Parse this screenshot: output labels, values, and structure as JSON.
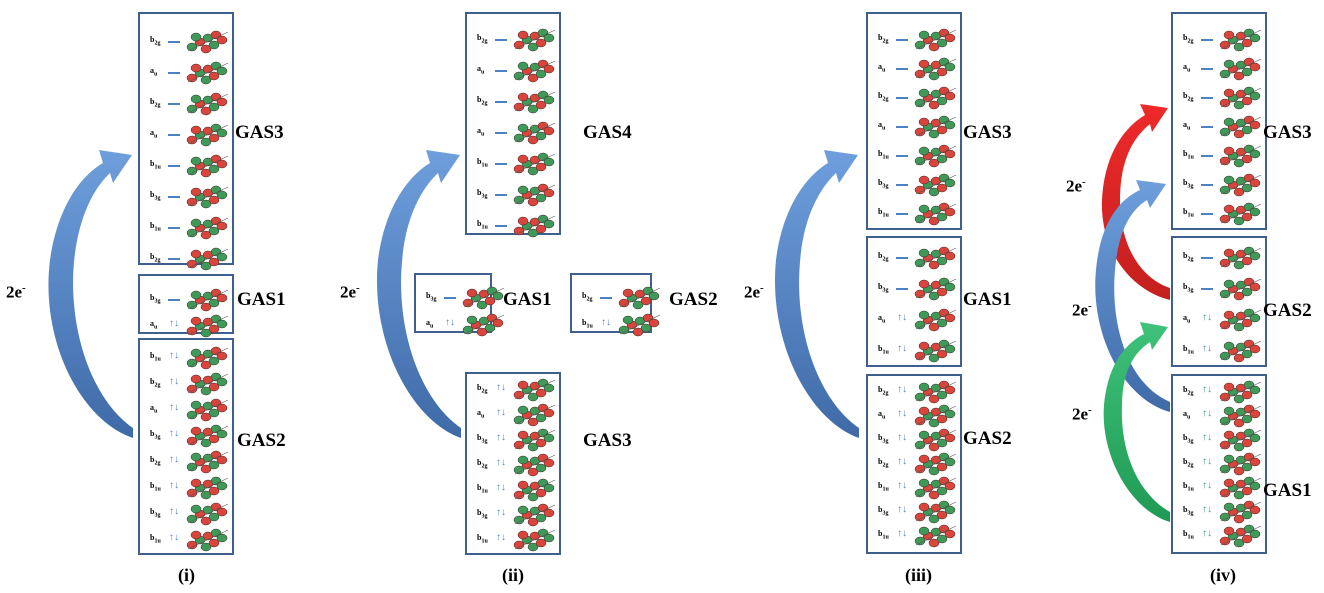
{
  "panels": [
    {
      "label": "(i)",
      "boxes": [
        {
          "id": "p1-gas3",
          "label": "GAS3",
          "occupied": false,
          "rows": [
            {
              "s": "b",
              "sub": "2g"
            },
            {
              "s": "a",
              "sub": "u"
            },
            {
              "s": "b",
              "sub": "2g"
            },
            {
              "s": "a",
              "sub": "u"
            },
            {
              "s": "b",
              "sub": "1u"
            },
            {
              "s": "b",
              "sub": "3g"
            },
            {
              "s": "b",
              "sub": "1u"
            },
            {
              "s": "b",
              "sub": "2g"
            }
          ]
        },
        {
          "id": "p1-gas1",
          "label": "GAS1",
          "occupied": false,
          "rows": [
            {
              "s": "b",
              "sub": "3g",
              "occ": false
            },
            {
              "s": "a",
              "sub": "u",
              "occ": true
            }
          ]
        },
        {
          "id": "p1-gas2",
          "label": "GAS2",
          "occupied": true,
          "rows": [
            {
              "s": "b",
              "sub": "1u"
            },
            {
              "s": "b",
              "sub": "2g"
            },
            {
              "s": "a",
              "sub": "u"
            },
            {
              "s": "b",
              "sub": "3g"
            },
            {
              "s": "b",
              "sub": "2g"
            },
            {
              "s": "b",
              "sub": "1u"
            },
            {
              "s": "b",
              "sub": "3g"
            },
            {
              "s": "b",
              "sub": "1u"
            }
          ]
        }
      ],
      "electron_labels": [
        "2e-"
      ]
    },
    {
      "label": "(ii)",
      "boxes": [
        {
          "id": "p2-gas4",
          "label": "GAS4",
          "occupied": false,
          "rows": [
            {
              "s": "b",
              "sub": "2g"
            },
            {
              "s": "a",
              "sub": "u"
            },
            {
              "s": "b",
              "sub": "2g"
            },
            {
              "s": "a",
              "sub": "u"
            },
            {
              "s": "b",
              "sub": "1u"
            },
            {
              "s": "b",
              "sub": "3g"
            },
            {
              "s": "b",
              "sub": "1u"
            }
          ]
        },
        {
          "id": "p2-gas1",
          "label": "GAS1",
          "occupied": false,
          "rows": [
            {
              "s": "b",
              "sub": "3g",
              "occ": false
            },
            {
              "s": "a",
              "sub": "u",
              "occ": true
            }
          ]
        },
        {
          "id": "p2-gas2",
          "label": "GAS2",
          "occupied": false,
          "rows": [
            {
              "s": "b",
              "sub": "2g",
              "occ": false
            },
            {
              "s": "b",
              "sub": "1u",
              "occ": true
            }
          ]
        },
        {
          "id": "p2-gas3",
          "label": "GAS3",
          "occupied": true,
          "rows": [
            {
              "s": "b",
              "sub": "2g"
            },
            {
              "s": "a",
              "sub": "u"
            },
            {
              "s": "b",
              "sub": "3g"
            },
            {
              "s": "b",
              "sub": "2g"
            },
            {
              "s": "b",
              "sub": "1u"
            },
            {
              "s": "b",
              "sub": "3g"
            },
            {
              "s": "b",
              "sub": "1u"
            }
          ]
        }
      ],
      "electron_labels": [
        "2e-"
      ]
    },
    {
      "label": "(iii)",
      "boxes": [
        {
          "id": "p3-gas3",
          "label": "GAS3",
          "occupied": false,
          "rows": [
            {
              "s": "b",
              "sub": "2g"
            },
            {
              "s": "a",
              "sub": "u"
            },
            {
              "s": "b",
              "sub": "2g"
            },
            {
              "s": "a",
              "sub": "u"
            },
            {
              "s": "b",
              "sub": "1u"
            },
            {
              "s": "b",
              "sub": "3g"
            },
            {
              "s": "b",
              "sub": "1u"
            }
          ]
        },
        {
          "id": "p3-gas1",
          "label": "GAS1",
          "occupied": false,
          "rows": [
            {
              "s": "b",
              "sub": "2g",
              "occ": false
            },
            {
              "s": "b",
              "sub": "3g",
              "occ": false
            },
            {
              "s": "a",
              "sub": "u",
              "occ": true
            },
            {
              "s": "b",
              "sub": "1u",
              "occ": true
            }
          ]
        },
        {
          "id": "p3-gas2",
          "label": "GAS2",
          "occupied": true,
          "rows": [
            {
              "s": "b",
              "sub": "2g"
            },
            {
              "s": "a",
              "sub": "u"
            },
            {
              "s": "b",
              "sub": "3g"
            },
            {
              "s": "b",
              "sub": "2g"
            },
            {
              "s": "b",
              "sub": "1u"
            },
            {
              "s": "b",
              "sub": "3g"
            },
            {
              "s": "b",
              "sub": "1u"
            }
          ]
        }
      ],
      "electron_labels": [
        "2e-"
      ]
    },
    {
      "label": "(iv)",
      "boxes": [
        {
          "id": "p4-gas3",
          "label": "GAS3",
          "occupied": false,
          "rows": [
            {
              "s": "b",
              "sub": "2g"
            },
            {
              "s": "a",
              "sub": "u"
            },
            {
              "s": "b",
              "sub": "2g"
            },
            {
              "s": "a",
              "sub": "u"
            },
            {
              "s": "b",
              "sub": "1u"
            },
            {
              "s": "b",
              "sub": "3g"
            },
            {
              "s": "b",
              "sub": "1u"
            }
          ]
        },
        {
          "id": "p4-gas2",
          "label": "GAS2",
          "occupied": false,
          "rows": [
            {
              "s": "b",
              "sub": "2g",
              "occ": false
            },
            {
              "s": "b",
              "sub": "3g",
              "occ": false
            },
            {
              "s": "a",
              "sub": "u",
              "occ": true
            },
            {
              "s": "b",
              "sub": "1u",
              "occ": true
            }
          ]
        },
        {
          "id": "p4-gas1",
          "label": "GAS1",
          "occupied": true,
          "rows": [
            {
              "s": "b",
              "sub": "2g"
            },
            {
              "s": "a",
              "sub": "u"
            },
            {
              "s": "b",
              "sub": "3g"
            },
            {
              "s": "b",
              "sub": "2g"
            },
            {
              "s": "b",
              "sub": "1u"
            },
            {
              "s": "b",
              "sub": "3g"
            },
            {
              "s": "b",
              "sub": "1u"
            }
          ]
        }
      ],
      "electron_labels": [
        "2e-",
        "2e-",
        "2e-"
      ]
    }
  ],
  "colors": {
    "box_border": "#3f5f8f",
    "level_line": "#4b82c4",
    "arrow_blue": "#5b8ccc",
    "arrow_red": "#e03030",
    "arrow_green": "#2fb56a",
    "orbital_red": "#d9443c",
    "orbital_green": "#3f9a5a",
    "orbital_dark": "#7a3a34"
  }
}
